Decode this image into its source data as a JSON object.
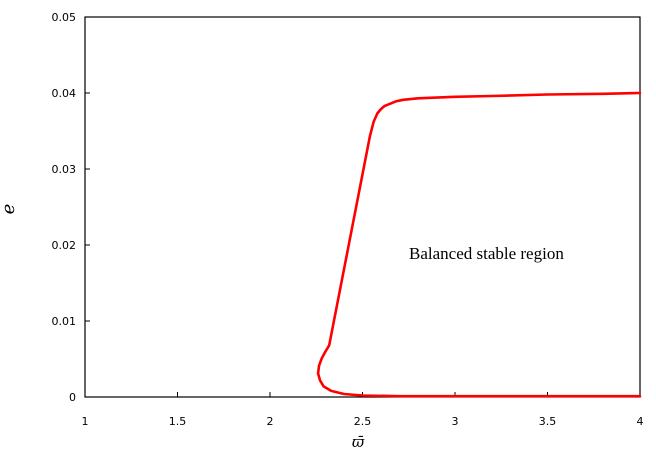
{
  "chart_data": {
    "type": "line",
    "title": "",
    "xlabel": "ϖ̄",
    "ylabel": "e",
    "xlim": [
      1,
      4
    ],
    "ylim": [
      0,
      0.05
    ],
    "x_ticks": [
      1,
      1.5,
      2,
      2.5,
      3,
      3.5,
      4
    ],
    "x_tick_labels": [
      "1",
      "1.5",
      "2",
      "2.5",
      "3",
      "3.5",
      "4"
    ],
    "y_ticks": [
      0,
      0.01,
      0.02,
      0.03,
      0.04,
      0.05
    ],
    "y_tick_labels": [
      "0",
      "0.01",
      "0.02",
      "0.03",
      "0.04",
      "0.05"
    ],
    "grid": false,
    "legend": "none",
    "annotations": [
      {
        "text": "Balanced stable region",
        "x": 3.27,
        "y": 0.0188
      }
    ],
    "series": [
      {
        "color": "#ff0000",
        "x": [
          4.0,
          3.5,
          3.0,
          2.7,
          2.5,
          2.4,
          2.33,
          2.29,
          2.27,
          2.26,
          2.265,
          2.28,
          2.3,
          2.32,
          2.34,
          2.36,
          2.38,
          2.4,
          2.42,
          2.44,
          2.46,
          2.48,
          2.5,
          2.52,
          2.54,
          2.56,
          2.58,
          2.6,
          2.62,
          2.64,
          2.66,
          2.68,
          2.72,
          2.8,
          2.9,
          3.0,
          3.2,
          3.5,
          3.8,
          4.0
        ],
        "y": [
          0.0001,
          0.0001,
          0.0001,
          0.0001,
          0.0002,
          0.0004,
          0.0008,
          0.0014,
          0.0022,
          0.0031,
          0.0041,
          0.0051,
          0.006,
          0.0068,
          0.0093,
          0.0118,
          0.0143,
          0.0168,
          0.0193,
          0.0218,
          0.0243,
          0.0268,
          0.0293,
          0.0318,
          0.0343,
          0.0362,
          0.0373,
          0.0379,
          0.0383,
          0.0385,
          0.0387,
          0.0389,
          0.0391,
          0.0393,
          0.0394,
          0.0395,
          0.0396,
          0.0398,
          0.0399,
          0.04
        ]
      }
    ]
  }
}
